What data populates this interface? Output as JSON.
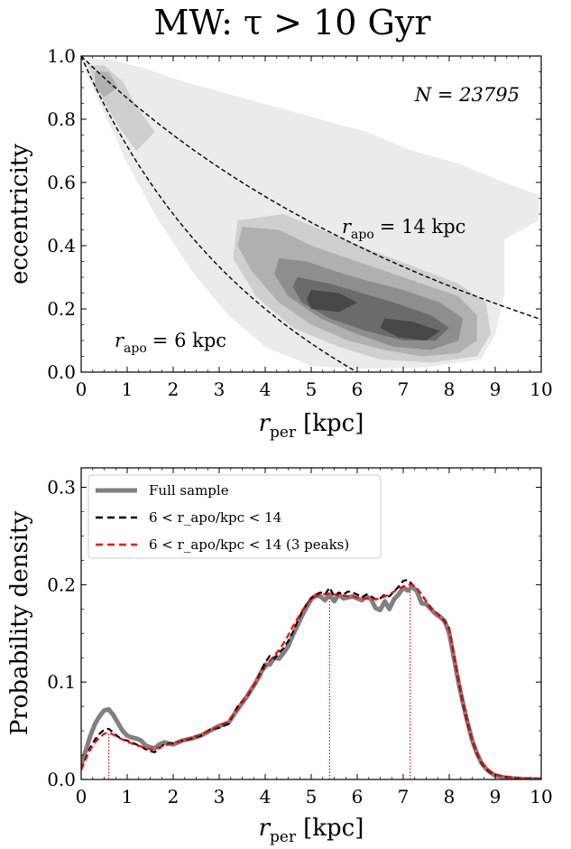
{
  "figure_title": "MW: τ > 10 Gyr",
  "chart_data": [
    {
      "type": "heatmap",
      "title": "MW: τ > 10 Gyr",
      "xlabel": "r_per [kpc]",
      "xlabel_main": "r",
      "xlabel_sub": "per",
      "xlabel_unit": "[kpc]",
      "ylabel": "eccentricity",
      "xlim": [
        0,
        10
      ],
      "ylim": [
        0,
        1
      ],
      "xticks": [
        0,
        1,
        2,
        3,
        4,
        5,
        6,
        7,
        8,
        9,
        10
      ],
      "xtick_labels": [
        "0",
        "1",
        "2",
        "3",
        "4",
        "5",
        "6",
        "7",
        "8",
        "9",
        "10"
      ],
      "yticks": [
        0.0,
        0.2,
        0.4,
        0.6,
        0.8,
        1.0
      ],
      "ytick_labels": [
        "0.0",
        "0.2",
        "0.4",
        "0.6",
        "0.8",
        "1.0"
      ],
      "grid": false,
      "annotation_N": "N = 23795",
      "curves": [
        {
          "label": "r_apo = 14 kpc",
          "label_main": "r",
          "label_sub": "apo",
          "label_rest": "= 14 kpc",
          "r_apo": 14,
          "style": "dashed",
          "color": "#000000"
        },
        {
          "label": "r_apo = 6 kpc",
          "label_main": "r",
          "label_sub": "apo",
          "label_rest": "= 6 kpc",
          "r_apo": 6,
          "style": "dashed",
          "color": "#000000"
        }
      ],
      "density_levels": [
        {
          "level": 1,
          "color": "#ebebeb"
        },
        {
          "level": 2,
          "color": "#cfcfcf"
        },
        {
          "level": 3,
          "color": "#b0b0b0"
        },
        {
          "level": 4,
          "color": "#8e8e8e"
        },
        {
          "level": 5,
          "color": "#6b6b6b"
        },
        {
          "level": 6,
          "color": "#474747"
        }
      ]
    },
    {
      "type": "line",
      "xlabel": "r_per [kpc]",
      "xlabel_main": "r",
      "xlabel_sub": "per",
      "xlabel_unit": "[kpc]",
      "ylabel": "Probability density",
      "xlim": [
        0,
        10
      ],
      "ylim": [
        0,
        0.32
      ],
      "xticks": [
        0,
        1,
        2,
        3,
        4,
        5,
        6,
        7,
        8,
        9,
        10
      ],
      "xtick_labels": [
        "0",
        "1",
        "2",
        "3",
        "4",
        "5",
        "6",
        "7",
        "8",
        "9",
        "10"
      ],
      "yticks": [
        0.0,
        0.1,
        0.2,
        0.3
      ],
      "ytick_labels": [
        "0.0",
        "0.1",
        "0.2",
        "0.3"
      ],
      "grid": false,
      "legend_position": "top-left",
      "peaks_x": [
        0.6,
        5.4,
        7.15
      ],
      "x": [
        0,
        0.1,
        0.2,
        0.3,
        0.4,
        0.5,
        0.6,
        0.7,
        0.8,
        0.9,
        1.0,
        1.1,
        1.2,
        1.3,
        1.4,
        1.5,
        1.6,
        1.7,
        1.8,
        1.9,
        2.0,
        2.2,
        2.4,
        2.6,
        2.8,
        3.0,
        3.2,
        3.4,
        3.6,
        3.8,
        4.0,
        4.1,
        4.2,
        4.3,
        4.4,
        4.5,
        4.6,
        4.7,
        4.8,
        4.9,
        5.0,
        5.1,
        5.2,
        5.3,
        5.4,
        5.5,
        5.6,
        5.7,
        5.8,
        5.9,
        6.0,
        6.1,
        6.2,
        6.3,
        6.4,
        6.5,
        6.6,
        6.7,
        6.8,
        6.9,
        7.0,
        7.1,
        7.2,
        7.3,
        7.4,
        7.5,
        7.6,
        7.7,
        7.8,
        7.9,
        8.0,
        8.1,
        8.2,
        8.3,
        8.4,
        8.5,
        8.6,
        8.7,
        8.8,
        8.9,
        9.0,
        9.2,
        9.4,
        9.6,
        9.8,
        10.0
      ],
      "series": [
        {
          "name": "Full sample",
          "style": "solid",
          "color": "#808080",
          "values": [
            0.015,
            0.03,
            0.045,
            0.057,
            0.065,
            0.071,
            0.072,
            0.066,
            0.058,
            0.05,
            0.045,
            0.043,
            0.042,
            0.04,
            0.035,
            0.033,
            0.032,
            0.036,
            0.038,
            0.037,
            0.036,
            0.04,
            0.042,
            0.045,
            0.05,
            0.055,
            0.058,
            0.072,
            0.085,
            0.1,
            0.118,
            0.118,
            0.125,
            0.124,
            0.13,
            0.137,
            0.148,
            0.158,
            0.168,
            0.177,
            0.185,
            0.189,
            0.188,
            0.184,
            0.19,
            0.183,
            0.19,
            0.186,
            0.187,
            0.188,
            0.186,
            0.184,
            0.188,
            0.185,
            0.176,
            0.174,
            0.183,
            0.175,
            0.185,
            0.19,
            0.197,
            0.194,
            0.198,
            0.193,
            0.181,
            0.18,
            0.175,
            0.17,
            0.167,
            0.163,
            0.15,
            0.125,
            0.1,
            0.078,
            0.058,
            0.04,
            0.027,
            0.017,
            0.011,
            0.007,
            0.004,
            0.002,
            0.001,
            0.0005,
            0.0002,
            0.0001
          ]
        },
        {
          "name": "6 < r_apo/kpc < 14",
          "style": "dashed",
          "color": "#000000",
          "values": [
            0.01,
            0.022,
            0.033,
            0.041,
            0.047,
            0.051,
            0.052,
            0.048,
            0.044,
            0.041,
            0.04,
            0.038,
            0.036,
            0.034,
            0.031,
            0.029,
            0.028,
            0.032,
            0.036,
            0.037,
            0.037,
            0.04,
            0.042,
            0.045,
            0.051,
            0.053,
            0.057,
            0.075,
            0.085,
            0.1,
            0.12,
            0.127,
            0.124,
            0.13,
            0.135,
            0.142,
            0.151,
            0.162,
            0.172,
            0.18,
            0.186,
            0.19,
            0.192,
            0.19,
            0.197,
            0.188,
            0.192,
            0.19,
            0.193,
            0.192,
            0.19,
            0.187,
            0.19,
            0.188,
            0.185,
            0.186,
            0.19,
            0.188,
            0.193,
            0.198,
            0.204,
            0.205,
            0.2,
            0.196,
            0.19,
            0.183,
            0.176,
            0.172,
            0.168,
            0.162,
            0.155,
            0.128,
            0.102,
            0.078,
            0.058,
            0.04,
            0.027,
            0.017,
            0.011,
            0.007,
            0.005,
            0.003,
            0.0015,
            0.0008,
            0.0004,
            0.0002
          ]
        },
        {
          "name": "6 < r_apo/kpc < 14 (3 peaks)",
          "style": "dashed",
          "color": "#ff0000",
          "values": [
            0.01,
            0.021,
            0.031,
            0.038,
            0.043,
            0.047,
            0.048,
            0.046,
            0.043,
            0.041,
            0.039,
            0.037,
            0.035,
            0.034,
            0.032,
            0.031,
            0.031,
            0.033,
            0.035,
            0.036,
            0.037,
            0.04,
            0.043,
            0.046,
            0.05,
            0.055,
            0.06,
            0.072,
            0.086,
            0.1,
            0.115,
            0.122,
            0.127,
            0.133,
            0.14,
            0.148,
            0.157,
            0.165,
            0.173,
            0.18,
            0.185,
            0.188,
            0.19,
            0.19,
            0.191,
            0.19,
            0.189,
            0.189,
            0.188,
            0.188,
            0.187,
            0.186,
            0.186,
            0.185,
            0.185,
            0.186,
            0.188,
            0.19,
            0.193,
            0.196,
            0.198,
            0.2,
            0.2,
            0.196,
            0.19,
            0.183,
            0.177,
            0.172,
            0.167,
            0.161,
            0.153,
            0.13,
            0.104,
            0.08,
            0.06,
            0.041,
            0.028,
            0.018,
            0.012,
            0.008,
            0.005,
            0.003,
            0.0015,
            0.0008,
            0.0004,
            0.0002
          ]
        }
      ]
    }
  ]
}
